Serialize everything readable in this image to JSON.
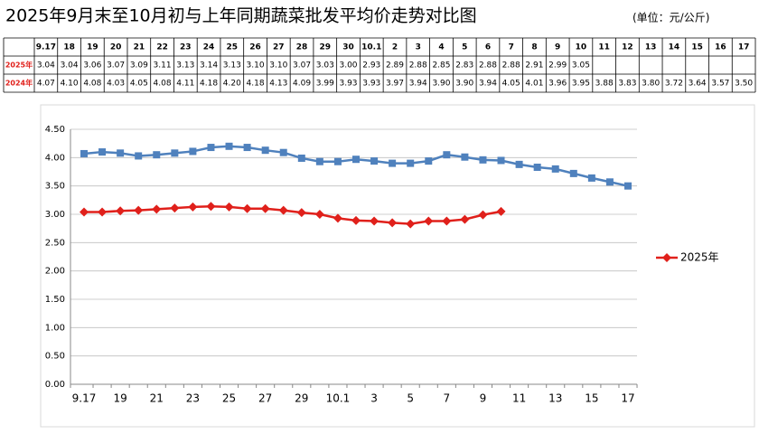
{
  "chart_data": {
    "type": "line",
    "title": "2025年9月末至10月初与上年同期蔬菜批发平均价走势对比图",
    "unit": "(单位：元/公斤)",
    "categories": [
      "9.17",
      "18",
      "19",
      "20",
      "21",
      "22",
      "23",
      "24",
      "25",
      "26",
      "27",
      "28",
      "29",
      "30",
      "10.1",
      "2",
      "3",
      "4",
      "5",
      "6",
      "7",
      "8",
      "9",
      "10",
      "11",
      "12",
      "13",
      "14",
      "15",
      "16",
      "17"
    ],
    "series": [
      {
        "name": "2025年",
        "color": "#e0201b",
        "marker": "diamond",
        "values": [
          3.04,
          3.04,
          3.06,
          3.07,
          3.09,
          3.11,
          3.13,
          3.14,
          3.13,
          3.1,
          3.1,
          3.07,
          3.03,
          3.0,
          2.93,
          2.89,
          2.88,
          2.85,
          2.83,
          2.88,
          2.88,
          2.91,
          2.99,
          3.05,
          null,
          null,
          null,
          null,
          null,
          null,
          null
        ],
        "value_labels": [
          "3.04",
          "3.04",
          "3.06",
          "3.07",
          "3.09",
          "3.11",
          "3.13",
          "3.14",
          "3.13",
          "3.10",
          "3.10",
          "3.07",
          "3.03",
          "3.00",
          "2.93",
          "2.89",
          "2.88",
          "2.85",
          "2.83",
          "2.88",
          "2.88",
          "2.91",
          "2.99",
          "3.05",
          null,
          null,
          null,
          null,
          null,
          null,
          null
        ]
      },
      {
        "color": "#4f81bd",
        "marker": "square",
        "values": [
          4.07,
          4.1,
          4.08,
          4.03,
          4.05,
          4.08,
          4.11,
          4.18,
          4.2,
          4.18,
          4.13,
          4.09,
          3.99,
          3.93,
          3.93,
          3.97,
          3.94,
          3.9,
          3.9,
          3.94,
          4.05,
          4.01,
          3.96,
          3.95,
          3.88,
          3.83,
          3.8,
          3.72,
          3.64,
          3.57,
          3.5
        ],
        "value_labels": [
          "4.07",
          "4.10",
          "4.08",
          "4.03",
          "4.05",
          "4.08",
          "4.11",
          "4.18",
          "4.20",
          "4.18",
          "4.13",
          "4.09",
          "3.99",
          "3.93",
          "3.93",
          "3.97",
          "3.94",
          "3.90",
          "3.90",
          "3.94",
          "4.05",
          "4.01",
          "3.96",
          "3.95",
          "3.88",
          "3.83",
          "3.80",
          "3.72",
          "3.64",
          "3.57",
          "3.50"
        ]
      }
    ],
    "ylim": [
      0,
      4.5
    ],
    "yticks": [
      {
        "value": 0,
        "label": "0.00"
      },
      {
        "value": 0.5,
        "label": "0.50"
      },
      {
        "value": 1,
        "label": "1.00"
      },
      {
        "value": 1.5,
        "label": "1.50"
      },
      {
        "value": 2,
        "label": "2.00"
      },
      {
        "value": 2.5,
        "label": "2.50"
      },
      {
        "value": 3,
        "label": "3.00"
      },
      {
        "value": 3.5,
        "label": "3.50"
      },
      {
        "value": 4,
        "label": "4.00"
      },
      {
        "value": 4.5,
        "label": "4.50"
      }
    ],
    "grid": true,
    "legend": "right",
    "table": {
      "row_labels": [
        "2025年",
        "2024年"
      ]
    }
  }
}
